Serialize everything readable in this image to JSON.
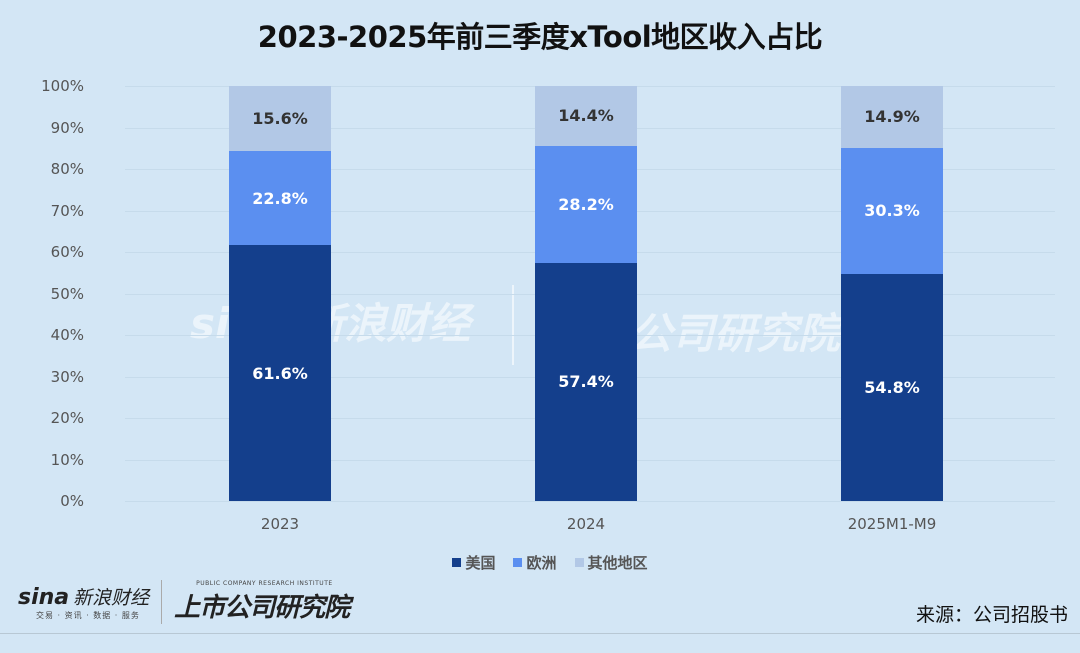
{
  "title": "2023-2025年前三季度xTool地区收入占比",
  "chart_data": {
    "type": "bar",
    "stacked": true,
    "title": "2023-2025年前三季度xTool地区收入占比",
    "xlabel": "",
    "ylabel": "",
    "ylim": [
      0,
      100
    ],
    "y_ticks": [
      "0%",
      "10%",
      "20%",
      "30%",
      "40%",
      "50%",
      "60%",
      "70%",
      "80%",
      "90%",
      "100%"
    ],
    "categories": [
      "2023",
      "2024",
      "2025M1-M9"
    ],
    "series": [
      {
        "name": "美国",
        "color": "#143f8c",
        "values": [
          61.6,
          57.4,
          54.8
        ],
        "labels": [
          "61.6%",
          "57.4%",
          "54.8%"
        ]
      },
      {
        "name": "欧洲",
        "color": "#5b8ff0",
        "values": [
          22.8,
          28.2,
          30.3
        ],
        "labels": [
          "22.8%",
          "28.2%",
          "30.3%"
        ]
      },
      {
        "name": "其他地区",
        "color": "#b2c8e6",
        "values": [
          15.6,
          14.4,
          14.9
        ],
        "labels": [
          "15.6%",
          "14.4%",
          "14.9%"
        ]
      }
    ],
    "grid": true,
    "legend_position": "bottom"
  },
  "legend": {
    "items": [
      {
        "label": "美国",
        "color": "#143f8c"
      },
      {
        "label": "欧洲",
        "color": "#5b8ff0"
      },
      {
        "label": "其他地区",
        "color": "#b2c8e6"
      }
    ]
  },
  "footer": {
    "sina_logo": "sina",
    "sina_name": "新浪财经",
    "sina_tagline": "交易 · 资讯 · 数据 · 服务",
    "institute_en": "PUBLIC COMPANY RESEARCH INSTITUTE",
    "institute_cn": "上市公司研究院",
    "source": "来源：公司招股书"
  },
  "watermark": {
    "left": "sina 新浪财经",
    "right": "公司研究院"
  }
}
